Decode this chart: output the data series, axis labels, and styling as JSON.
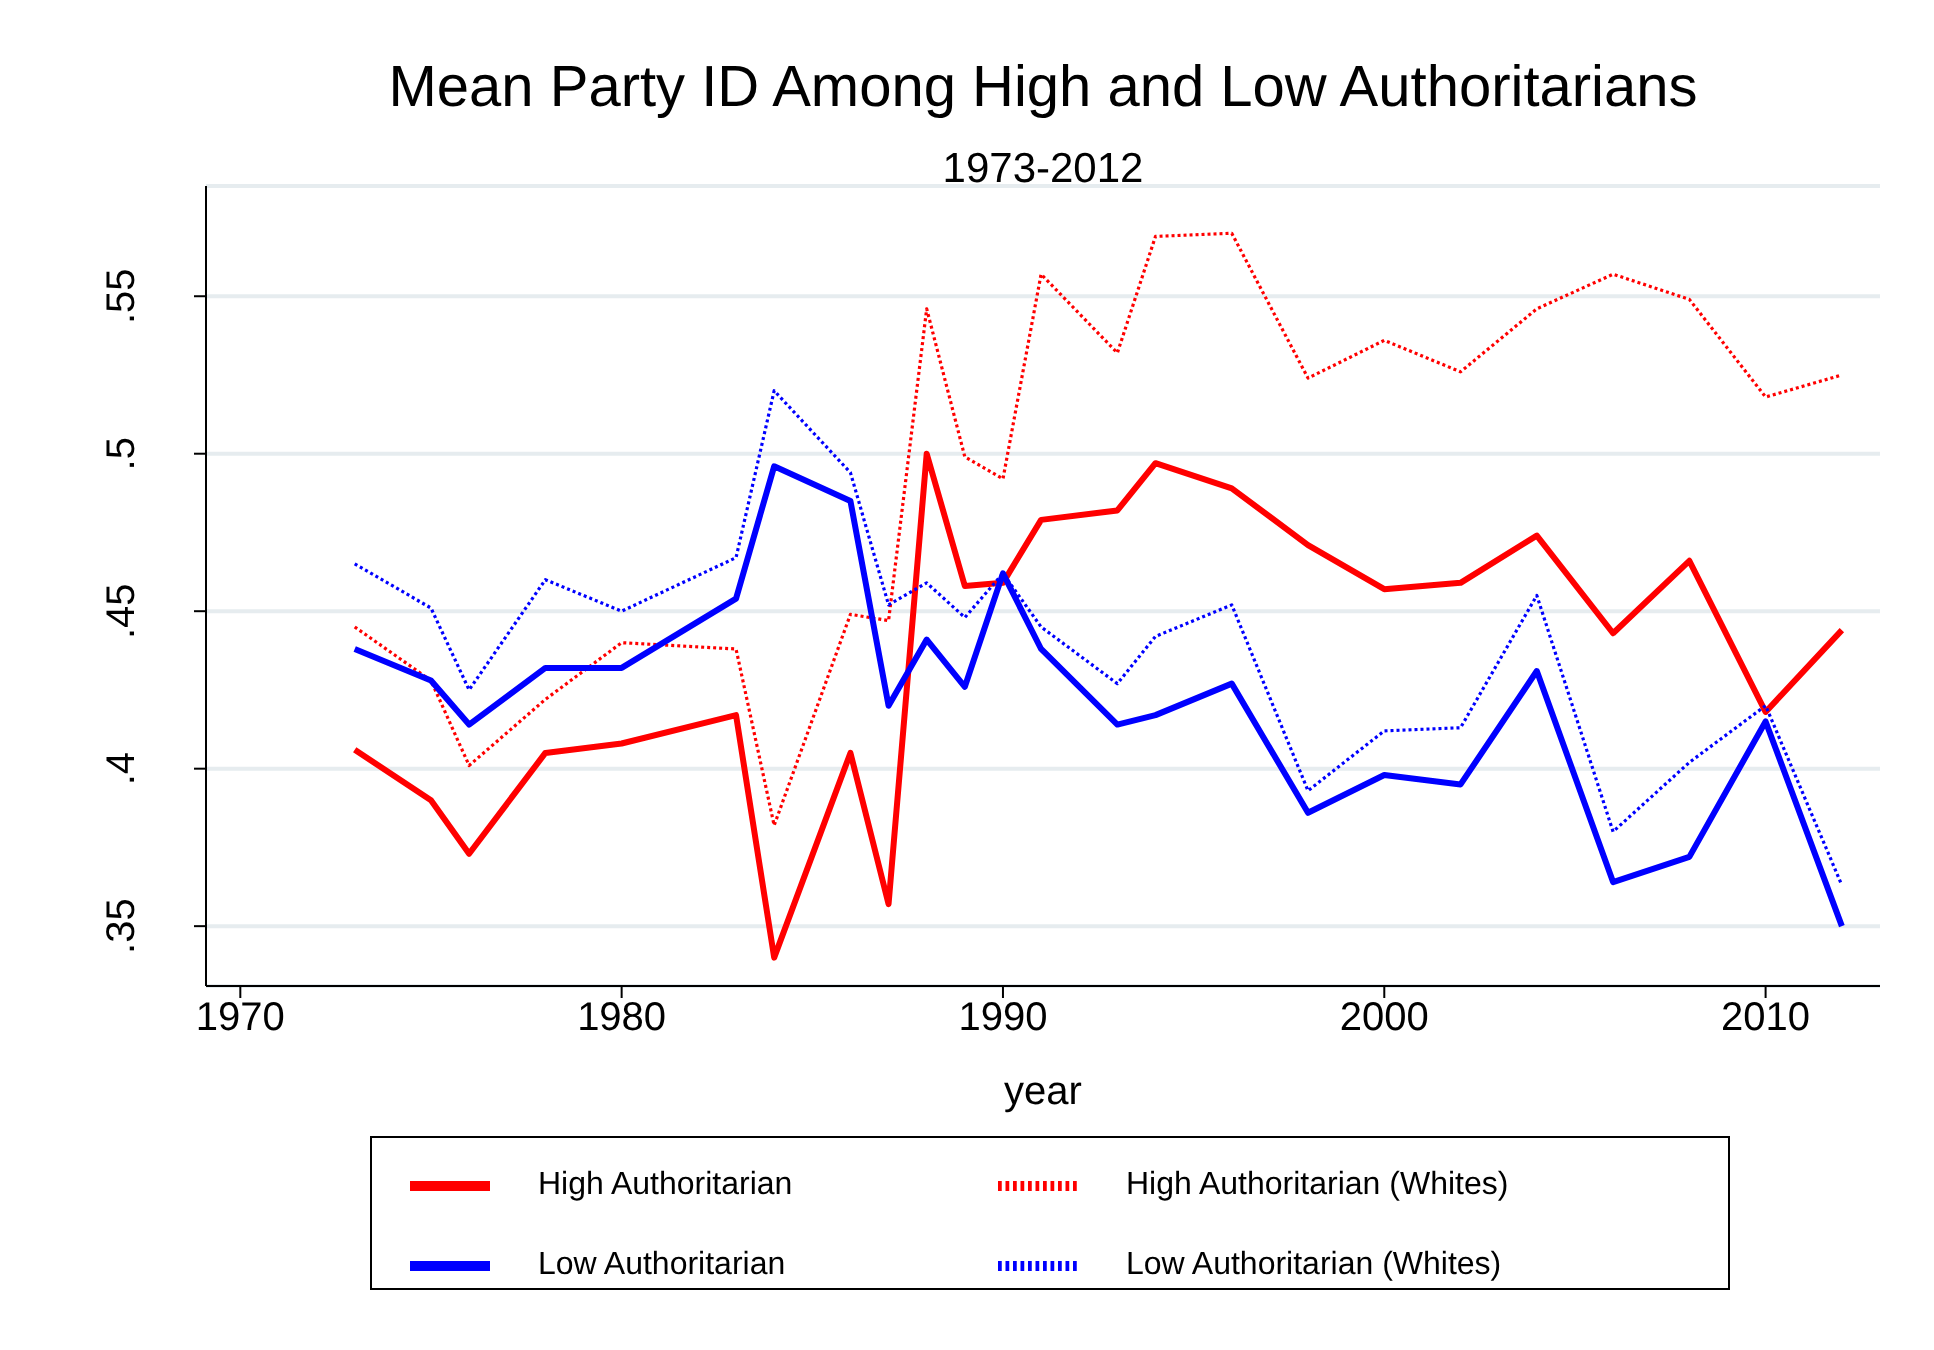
{
  "chart_data": {
    "type": "line",
    "title": "Mean Party ID Among High and Low Authoritarians",
    "subtitle": "1973-2012",
    "xlabel": "year",
    "x": [
      1973,
      1975,
      1976,
      1978,
      1980,
      1983,
      1984,
      1986,
      1987,
      1988,
      1989,
      1990,
      1991,
      1993,
      1994,
      1996,
      1998,
      2000,
      2002,
      2004,
      2006,
      2008,
      2010,
      2012
    ],
    "xlim": [
      1969.1,
      2013
    ],
    "xticks": [
      1970,
      1980,
      1990,
      2000,
      2010
    ],
    "ylim": [
      0.331,
      0.585
    ],
    "yticks": [
      {
        "value": 0.35,
        "label": ".35"
      },
      {
        "value": 0.4,
        "label": ".4"
      },
      {
        "value": 0.45,
        "label": ".45"
      },
      {
        "value": 0.5,
        "label": ".5"
      },
      {
        "value": 0.55,
        "label": ".55"
      }
    ],
    "grid": "y",
    "legend": "bottom",
    "marker": "none",
    "series": [
      {
        "name": "High Authoritarian",
        "color": "#ff0000",
        "line_style": "solid",
        "values": [
          0.406,
          0.39,
          0.373,
          0.405,
          0.408,
          0.417,
          0.34,
          0.405,
          0.357,
          0.5,
          0.458,
          0.459,
          0.479,
          0.482,
          0.497,
          0.489,
          0.471,
          0.457,
          0.459,
          0.474,
          0.443,
          0.466,
          0.418,
          0.444
        ]
      },
      {
        "name": "High Authoritarian (Whites)",
        "color": "#ff0000",
        "line_style": "dotted",
        "values": [
          0.445,
          0.428,
          0.401,
          0.422,
          0.44,
          0.438,
          0.382,
          0.449,
          0.447,
          0.546,
          0.499,
          0.492,
          0.557,
          0.532,
          0.569,
          0.57,
          0.524,
          0.536,
          0.526,
          0.546,
          0.557,
          0.549,
          0.518,
          0.525
        ]
      },
      {
        "name": "Low Authoritarian",
        "color": "#0000ff",
        "line_style": "solid",
        "values": [
          0.438,
          0.428,
          0.414,
          0.432,
          0.432,
          0.454,
          0.496,
          0.485,
          0.42,
          0.441,
          0.426,
          0.462,
          0.438,
          0.414,
          0.417,
          0.427,
          0.386,
          0.398,
          0.395,
          0.431,
          0.364,
          0.372,
          0.415,
          0.35
        ]
      },
      {
        "name": "Low Authoritarian (Whites)",
        "color": "#0000ff",
        "line_style": "dotted",
        "values": [
          0.465,
          0.451,
          0.425,
          0.46,
          0.45,
          0.467,
          0.52,
          0.494,
          0.452,
          0.459,
          0.448,
          0.462,
          0.445,
          0.427,
          0.442,
          0.452,
          0.393,
          0.412,
          0.413,
          0.455,
          0.38,
          0.402,
          0.42,
          0.363
        ]
      }
    ]
  }
}
